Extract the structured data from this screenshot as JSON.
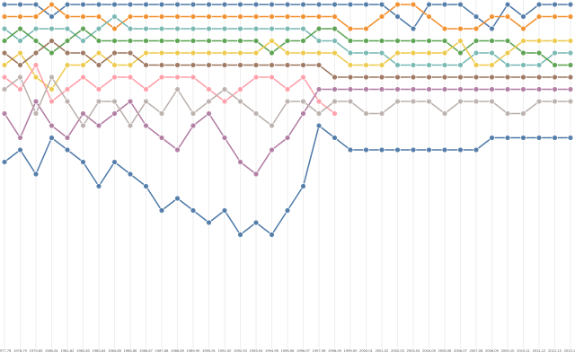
{
  "chart_data": {
    "type": "bump",
    "categories": [
      "1977-78",
      "1978-79",
      "1979-80",
      "1980-81",
      "1981-82",
      "1982-83",
      "1983-84",
      "1984-85",
      "1985-86",
      "1986-87",
      "1987-88",
      "1988-89",
      "1989-90",
      "1990-91",
      "1991-92",
      "1992-93",
      "1993-94",
      "1994-95",
      "1995-96",
      "1996-97",
      "1997-98",
      "1998-99",
      "1999-00",
      "2000-01",
      "2001-02",
      "2002-03",
      "2003-04",
      "2004-05",
      "2005-06",
      "2006-07",
      "2007-08",
      "2008-09",
      "2009-10",
      "2010-11",
      "2011-12",
      "2012-13",
      "2013-14"
    ],
    "ylim": [
      1,
      29
    ],
    "y_inverted": true,
    "grid": true,
    "series": [
      {
        "color": "#4e79a7",
        "values": [
          1,
          1,
          1,
          2,
          1,
          1,
          1,
          1,
          1,
          1,
          1,
          1,
          1,
          1,
          1,
          1,
          1,
          1,
          1,
          1,
          1,
          1,
          1,
          1,
          1,
          2,
          3,
          1,
          1,
          1,
          2,
          3,
          1,
          2,
          1,
          1,
          1
        ]
      },
      {
        "color": "#f28e2b",
        "values": [
          2,
          2,
          2,
          1,
          2,
          2,
          2,
          3,
          2,
          2,
          2,
          2,
          2,
          2,
          2,
          2,
          2,
          2,
          2,
          2,
          2,
          2,
          3,
          3,
          2,
          1,
          1,
          2,
          3,
          3,
          3,
          2,
          2,
          3,
          2,
          2,
          2
        ]
      },
      {
        "color": "#76b7b2",
        "values": [
          3,
          4,
          3,
          3,
          3,
          4,
          3,
          2,
          3,
          3,
          3,
          3,
          3,
          3,
          3,
          3,
          3,
          3,
          3,
          3,
          4,
          4,
          5,
          5,
          5,
          6,
          6,
          6,
          6,
          6,
          5,
          5,
          6,
          6,
          6,
          5,
          5
        ]
      },
      {
        "color": "#59a14f",
        "values": [
          4,
          3,
          4,
          5,
          4,
          3,
          4,
          4,
          4,
          4,
          4,
          4,
          4,
          4,
          4,
          4,
          4,
          5,
          4,
          4,
          3,
          3,
          4,
          4,
          4,
          4,
          4,
          4,
          4,
          5,
          4,
          4,
          4,
          5,
          5,
          6,
          6
        ]
      },
      {
        "color": "#edc948",
        "values": [
          6,
          5,
          7,
          8,
          6,
          6,
          5,
          6,
          6,
          5,
          5,
          5,
          5,
          5,
          5,
          5,
          5,
          4,
          5,
          5,
          5,
          5,
          6,
          6,
          6,
          5,
          5,
          5,
          5,
          4,
          6,
          6,
          5,
          4,
          4,
          4,
          4
        ]
      },
      {
        "color": "#ff9da7",
        "values": [
          7,
          8,
          6,
          9,
          8,
          7,
          8,
          7,
          7,
          8,
          7,
          7,
          7,
          8,
          9,
          8,
          7,
          7,
          8,
          7,
          9,
          10,
          null,
          null,
          null,
          null,
          null,
          null,
          null,
          null,
          null,
          null,
          null,
          null,
          null,
          null,
          null
        ]
      },
      {
        "color": "#9c755f",
        "values": [
          5,
          6,
          5,
          4,
          5,
          5,
          6,
          5,
          5,
          6,
          6,
          6,
          6,
          6,
          6,
          6,
          6,
          6,
          6,
          6,
          6,
          7,
          7,
          7,
          7,
          7,
          7,
          7,
          7,
          7,
          7,
          7,
          7,
          7,
          7,
          7,
          7
        ]
      },
      {
        "color": "#b07aa1",
        "values": [
          10,
          12,
          9,
          11,
          12,
          10,
          11,
          10,
          9,
          11,
          12,
          13,
          11,
          10,
          12,
          14,
          15,
          13,
          12,
          10,
          8,
          8,
          8,
          8,
          8,
          8,
          8,
          8,
          8,
          8,
          8,
          8,
          8,
          8,
          8,
          8,
          8
        ]
      },
      {
        "color": "#bab0ac",
        "values": [
          8,
          7,
          10,
          7,
          9,
          11,
          9,
          9,
          11,
          9,
          10,
          8,
          10,
          9,
          8,
          9,
          10,
          11,
          9,
          9,
          10,
          9,
          9,
          10,
          10,
          9,
          9,
          9,
          10,
          9,
          9,
          9,
          10,
          10,
          9,
          9,
          9
        ]
      },
      {
        "color": "#4e79a7",
        "values": [
          14,
          13,
          15,
          12,
          13,
          14,
          16,
          14,
          15,
          16,
          18,
          17,
          18,
          19,
          18,
          20,
          19,
          20,
          18,
          16,
          11,
          12,
          13,
          13,
          13,
          13,
          13,
          13,
          13,
          13,
          13,
          12,
          12,
          12,
          12,
          12,
          12
        ]
      }
    ]
  }
}
